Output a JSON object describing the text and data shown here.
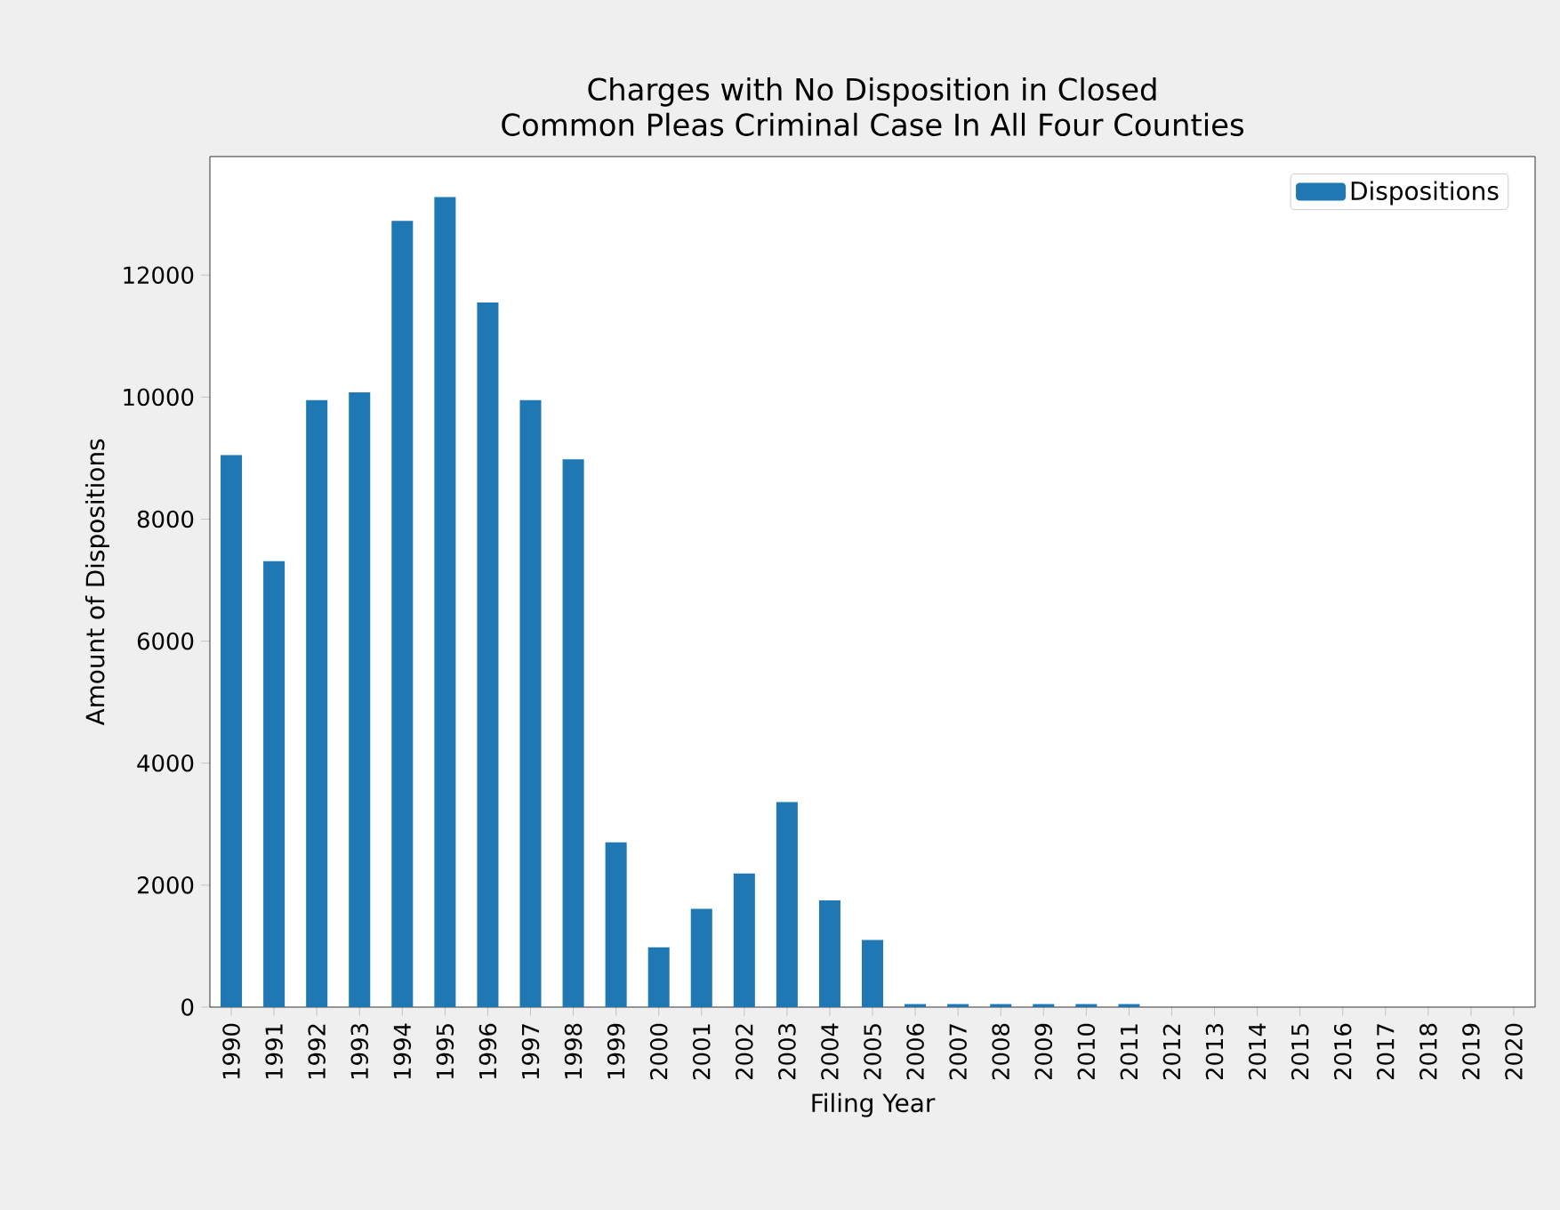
{
  "chart_data": {
    "type": "bar",
    "title": "Charges with No Disposition in Closed\nCommon Pleas Criminal Case In All Four Counties",
    "xlabel": "Filing Year",
    "ylabel": "Amount of Dispositions",
    "categories": [
      "1990",
      "1991",
      "1992",
      "1993",
      "1994",
      "1995",
      "1996",
      "1997",
      "1998",
      "1999",
      "2000",
      "2001",
      "2002",
      "2003",
      "2004",
      "2005",
      "2006",
      "2007",
      "2008",
      "2009",
      "2010",
      "2011",
      "2012",
      "2013",
      "2014",
      "2015",
      "2016",
      "2017",
      "2018",
      "2019",
      "2020"
    ],
    "series": [
      {
        "name": "Dispositions",
        "color": "#1f77b4",
        "values": [
          9050,
          7310,
          9950,
          10080,
          12890,
          13280,
          11550,
          9950,
          8980,
          2700,
          980,
          1610,
          2190,
          3360,
          1750,
          1100,
          50,
          50,
          50,
          50,
          50,
          50,
          0,
          0,
          0,
          0,
          0,
          0,
          0,
          0,
          0
        ]
      }
    ],
    "ylim": [
      0,
      13944
    ],
    "yticks": [
      0,
      2000,
      4000,
      6000,
      8000,
      10000,
      12000
    ],
    "legend": "top right"
  }
}
